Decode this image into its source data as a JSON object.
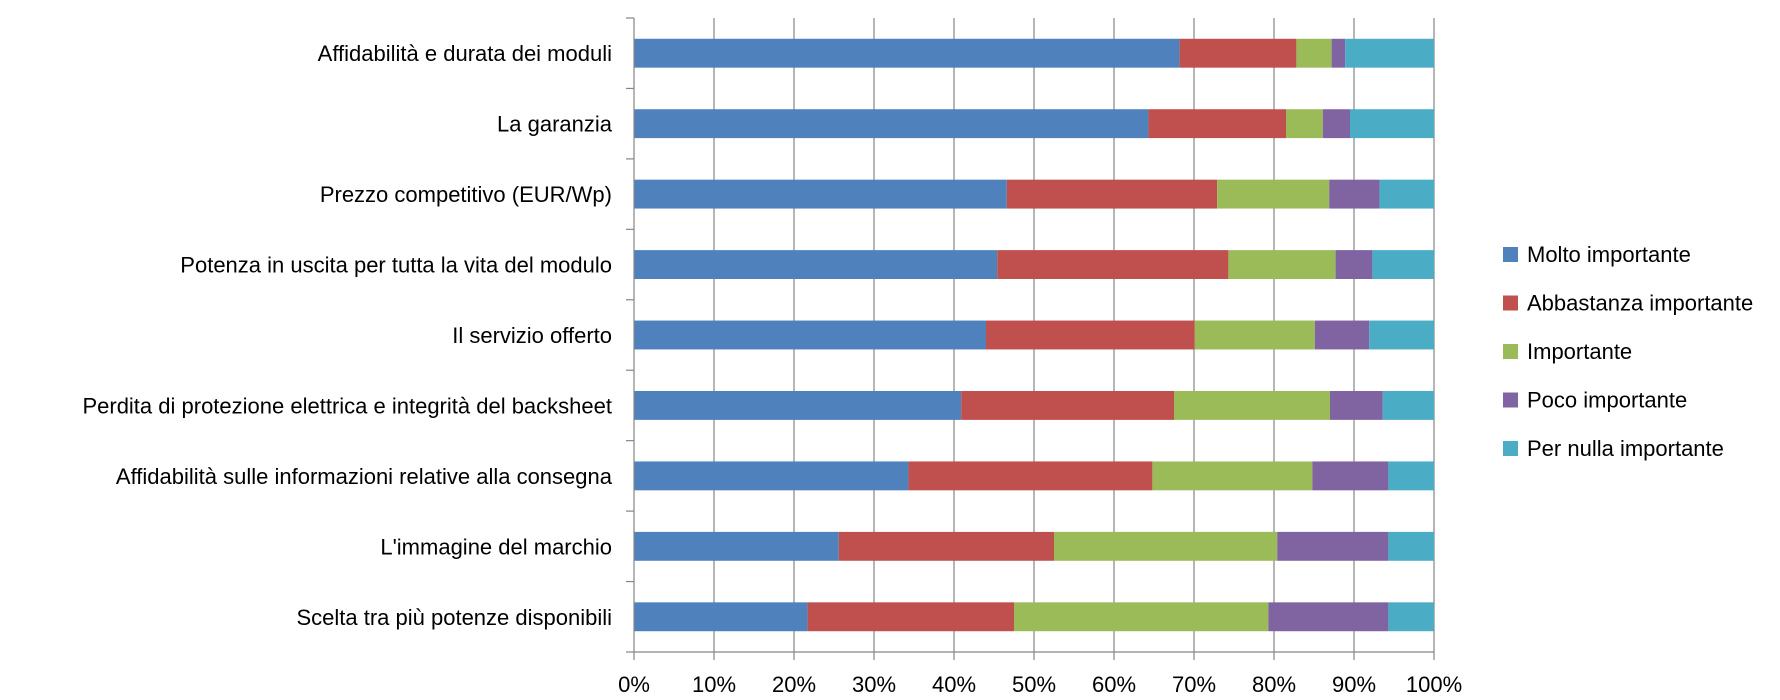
{
  "chart_data": {
    "type": "bar",
    "orientation": "horizontal",
    "stacked": "percent",
    "categories": [
      "Affidabilità e durata dei moduli",
      "La garanzia",
      "Prezzo competitivo (EUR/Wp)",
      "Potenza in uscita per tutta la vita del modulo",
      "Il servizio offerto",
      "Perdita di protezione elettrica e integrità del backsheet",
      "Affidabilità sulle informazioni relative alla consegna",
      "L'immagine del marchio",
      "Scelta tra più potenze disponibili"
    ],
    "series": [
      {
        "name": "Molto importante",
        "color": "#4f81bd",
        "values": [
          68.2,
          64.3,
          46.6,
          45.4,
          44.0,
          40.9,
          34.3,
          25.6,
          21.7
        ]
      },
      {
        "name": "Abbastanza importante",
        "color": "#c0504d",
        "values": [
          14.6,
          17.2,
          26.3,
          28.9,
          26.1,
          26.6,
          30.5,
          26.9,
          25.8
        ]
      },
      {
        "name": "Importante",
        "color": "#9bbb59",
        "values": [
          4.4,
          4.6,
          14.0,
          13.4,
          15.0,
          19.5,
          20.0,
          27.9,
          31.8
        ]
      },
      {
        "name": "Poco importante",
        "color": "#8064a2",
        "values": [
          1.7,
          3.4,
          6.3,
          4.6,
          6.8,
          6.6,
          9.5,
          13.9,
          15.0
        ]
      },
      {
        "name": "Per nulla importante",
        "color": "#4bacc6",
        "values": [
          11.1,
          10.5,
          6.8,
          7.7,
          8.1,
          6.4,
          5.7,
          5.7,
          5.7
        ]
      }
    ],
    "xlim": [
      0,
      100
    ],
    "x_ticks": [
      "0%",
      "10%",
      "20%",
      "30%",
      "40%",
      "50%",
      "60%",
      "70%",
      "80%",
      "90%",
      "100%"
    ],
    "grid": "vertical",
    "legend": "right",
    "title": "",
    "xlabel": "",
    "ylabel": ""
  }
}
